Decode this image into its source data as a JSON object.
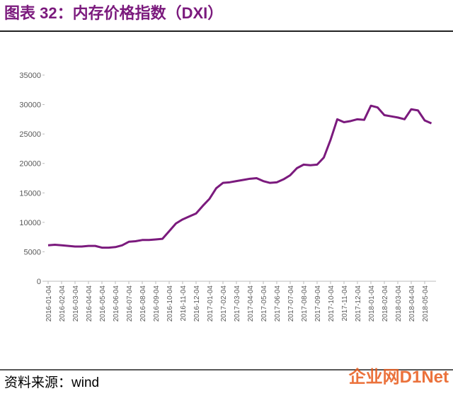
{
  "chart_data": {
    "type": "line",
    "title": "图表 32：内存价格指数（DXI）",
    "source": "资料来源：wind",
    "watermark": "企业网D1Net",
    "categories": [
      "2016-01-04",
      null,
      "2016-02-04",
      null,
      "2016-03-04",
      null,
      "2016-04-04",
      null,
      "2016-05-04",
      null,
      "2016-06-04",
      null,
      "2016-07-04",
      null,
      "2016-08-04",
      null,
      "2016-09-04",
      null,
      "2016-10-04",
      null,
      "2016-11-04",
      null,
      "2016-12-04",
      null,
      "2017-01-04",
      null,
      "2017-02-04",
      null,
      "2017-03-04",
      null,
      "2017-04-04",
      null,
      "2017-05-04",
      null,
      "2017-06-04",
      null,
      "2017-07-04",
      null,
      "2017-08-04",
      null,
      "2017-09-04",
      null,
      "2017-10-04",
      null,
      "2017-11-04",
      null,
      "2017-12-04",
      null,
      "2018-01-04",
      null,
      "2018-02-04",
      null,
      "2018-03-04",
      null,
      "2018-04-04",
      null,
      "2018-05-04",
      null
    ],
    "series": [
      {
        "color": "#7b1a7d",
        "values": [
          6100,
          6200,
          6100,
          6000,
          5900,
          5900,
          6000,
          6000,
          5700,
          5700,
          5800,
          6100,
          6700,
          6800,
          7000,
          7000,
          7100,
          7200,
          8500,
          9800,
          10500,
          11000,
          11500,
          12800,
          14000,
          15800,
          16700,
          16800,
          17000,
          17200,
          17400,
          17500,
          17000,
          16700,
          16800,
          17300,
          18000,
          19200,
          19800,
          19700,
          19800,
          21000,
          24000,
          27500,
          27000,
          27200,
          27500,
          27400,
          29800,
          29500,
          28200,
          28000,
          27800,
          27500,
          29200,
          29000,
          27300,
          26800
        ]
      }
    ],
    "ylim": [
      0,
      35000
    ],
    "yticks": [
      0,
      5000,
      10000,
      15000,
      20000,
      25000,
      30000,
      35000
    ]
  }
}
